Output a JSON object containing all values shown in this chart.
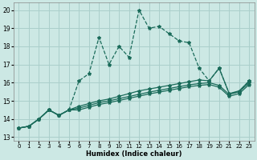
{
  "xlabel": "Humidex (Indice chaleur)",
  "bg_color": "#cce8e4",
  "grid_color": "#aacfcb",
  "line_color": "#1a6b5a",
  "xlim": [
    -0.5,
    23.5
  ],
  "ylim": [
    12.8,
    20.4
  ],
  "yticks": [
    13,
    14,
    15,
    16,
    17,
    18,
    19,
    20
  ],
  "xticks": [
    0,
    1,
    2,
    3,
    4,
    5,
    6,
    7,
    8,
    9,
    10,
    11,
    12,
    13,
    14,
    15,
    16,
    17,
    18,
    19,
    20,
    21,
    22,
    23
  ],
  "xtick_labels": [
    "0",
    "1",
    "2",
    "3",
    "4",
    "5",
    "6",
    "7",
    "8",
    "9",
    "10",
    "11",
    "12",
    "13",
    "14",
    "15",
    "16",
    "17",
    "18",
    "19",
    "20",
    "21",
    "22",
    "23"
  ],
  "series": [
    {
      "x": [
        0,
        1,
        2,
        3,
        4,
        5,
        6,
        7,
        8,
        9,
        10,
        11,
        12,
        13,
        14,
        15,
        16,
        17,
        18,
        19,
        20,
        21,
        22,
        23
      ],
      "y": [
        13.5,
        13.6,
        14.0,
        14.5,
        14.2,
        14.5,
        16.1,
        16.5,
        18.5,
        17.0,
        18.0,
        17.4,
        20.0,
        19.0,
        19.1,
        18.7,
        18.3,
        18.2,
        16.8,
        16.1,
        16.8,
        15.4,
        15.5,
        16.1
      ],
      "linestyle": "--",
      "marker": "*"
    },
    {
      "x": [
        0,
        1,
        2,
        3,
        4,
        5,
        6,
        7,
        8,
        9,
        10,
        11,
        12,
        13,
        14,
        15,
        16,
        17,
        18,
        19,
        20,
        21,
        22,
        23
      ],
      "y": [
        13.5,
        13.6,
        14.0,
        14.5,
        14.2,
        14.5,
        14.7,
        14.85,
        15.0,
        15.1,
        15.25,
        15.4,
        15.55,
        15.65,
        15.75,
        15.85,
        15.95,
        16.05,
        16.15,
        16.1,
        16.8,
        15.4,
        15.55,
        16.1
      ],
      "linestyle": "-",
      "marker": "*"
    },
    {
      "x": [
        0,
        1,
        2,
        3,
        4,
        5,
        6,
        7,
        8,
        9,
        10,
        11,
        12,
        13,
        14,
        15,
        16,
        17,
        18,
        19,
        20,
        21,
        22,
        23
      ],
      "y": [
        13.5,
        13.6,
        14.0,
        14.5,
        14.2,
        14.5,
        14.6,
        14.75,
        14.9,
        15.0,
        15.12,
        15.24,
        15.36,
        15.48,
        15.58,
        15.68,
        15.78,
        15.88,
        15.95,
        16.0,
        15.85,
        15.35,
        15.5,
        16.0
      ],
      "linestyle": "-",
      "marker": "*"
    },
    {
      "x": [
        0,
        1,
        2,
        3,
        4,
        5,
        6,
        7,
        8,
        9,
        10,
        11,
        12,
        13,
        14,
        15,
        16,
        17,
        18,
        19,
        20,
        21,
        22,
        23
      ],
      "y": [
        13.5,
        13.6,
        14.0,
        14.5,
        14.2,
        14.5,
        14.5,
        14.65,
        14.8,
        14.9,
        15.02,
        15.14,
        15.26,
        15.38,
        15.48,
        15.58,
        15.68,
        15.78,
        15.85,
        15.9,
        15.75,
        15.25,
        15.4,
        15.9
      ],
      "linestyle": "-",
      "marker": "*"
    }
  ]
}
